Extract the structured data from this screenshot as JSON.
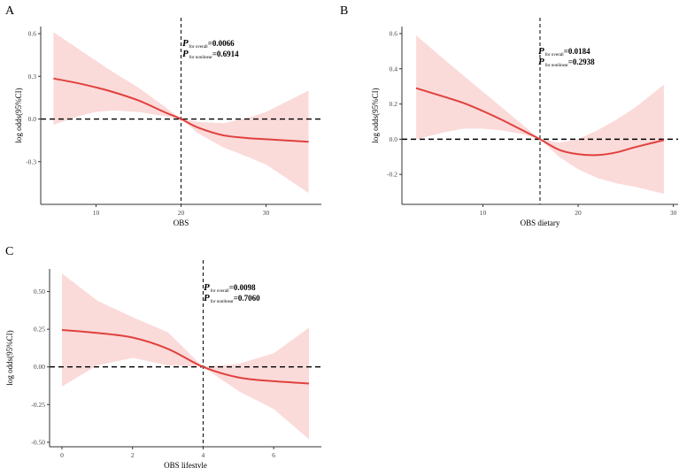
{
  "chart_data": [
    {
      "type": "line",
      "panel_label": "A",
      "xlabel": "OBS",
      "ylabel": "log odds(95%CI)",
      "xlim": [
        3.5,
        36.5
      ],
      "ylim": [
        -0.6,
        0.65
      ],
      "x_ticks": [
        10,
        20,
        30
      ],
      "x_tick_labels": [
        "10",
        "20",
        "30"
      ],
      "y_ticks": [
        -0.3,
        0,
        0.3,
        0.6
      ],
      "y_tick_labels": [
        "-0.3",
        "0.0",
        "0.3",
        "0.6"
      ],
      "reference_x": 20,
      "reference_y": 0,
      "annotation": {
        "line1": {
          "p": "P",
          "sub": "for overall",
          "value": "=0.0066"
        },
        "line2": {
          "p": "P",
          "sub": "for nonlinear",
          "value": "=0.6914"
        }
      },
      "series": [
        {
          "name": "estimate",
          "color": "#e0413d",
          "x": [
            5,
            8,
            10,
            12,
            15,
            18,
            20,
            22,
            25,
            28,
            30,
            35
          ],
          "values": [
            0.285,
            0.25,
            0.222,
            0.19,
            0.13,
            0.05,
            0.0,
            -0.06,
            -0.115,
            -0.135,
            -0.142,
            -0.16
          ]
        },
        {
          "name": "ci_upper",
          "color": "#fbdada",
          "x": [
            5,
            8,
            10,
            12,
            15,
            18,
            20,
            22,
            25,
            28,
            30,
            35
          ],
          "values": [
            0.61,
            0.49,
            0.41,
            0.33,
            0.22,
            0.09,
            0.0,
            -0.02,
            -0.03,
            0.01,
            0.05,
            0.2
          ]
        },
        {
          "name": "ci_lower",
          "color": "#fbdada",
          "x": [
            5,
            8,
            10,
            12,
            15,
            18,
            20,
            22,
            25,
            28,
            30,
            35
          ],
          "values": [
            -0.04,
            0.02,
            0.05,
            0.06,
            0.05,
            0.02,
            0.0,
            -0.1,
            -0.2,
            -0.27,
            -0.32,
            -0.52
          ]
        }
      ]
    },
    {
      "type": "line",
      "panel_label": "B",
      "xlabel": "OBS dietary",
      "ylabel": "log odds(95%CI)",
      "xlim": [
        1.5,
        30.5
      ],
      "ylim": [
        -0.37,
        0.64
      ],
      "x_ticks": [
        10,
        20,
        30
      ],
      "x_tick_labels": [
        "10",
        "20",
        "30"
      ],
      "y_ticks": [
        -0.2,
        0,
        0.2,
        0.4,
        0.6
      ],
      "y_tick_labels": [
        "-0.2",
        "0.0",
        "0.2",
        "0.4",
        "0.6"
      ],
      "reference_x": 16,
      "reference_y": 0,
      "annotation": {
        "line1": {
          "p": "P",
          "sub": "for overall",
          "value": "=0.0184"
        },
        "line2": {
          "p": "P",
          "sub": "for nonlinear",
          "value": "=0.2938"
        }
      },
      "series": [
        {
          "name": "estimate",
          "color": "#e0413d",
          "x": [
            3,
            6,
            8,
            10,
            12,
            14,
            16,
            18,
            20,
            22,
            24,
            26,
            29
          ],
          "values": [
            0.29,
            0.24,
            0.205,
            0.16,
            0.11,
            0.055,
            0.0,
            -0.06,
            -0.085,
            -0.09,
            -0.075,
            -0.045,
            -0.005
          ]
        },
        {
          "name": "ci_upper",
          "color": "#fbdada",
          "x": [
            3,
            6,
            8,
            10,
            12,
            14,
            16,
            18,
            20,
            22,
            24,
            26,
            29
          ],
          "values": [
            0.59,
            0.45,
            0.36,
            0.27,
            0.18,
            0.09,
            0.0,
            -0.02,
            0.0,
            0.05,
            0.11,
            0.18,
            0.31
          ]
        },
        {
          "name": "ci_lower",
          "color": "#fbdada",
          "x": [
            3,
            6,
            8,
            10,
            12,
            14,
            16,
            18,
            20,
            22,
            24,
            26,
            29
          ],
          "values": [
            0.0,
            0.04,
            0.06,
            0.06,
            0.05,
            0.03,
            0.0,
            -0.1,
            -0.17,
            -0.22,
            -0.25,
            -0.27,
            -0.31
          ]
        }
      ]
    },
    {
      "type": "line",
      "panel_label": "C",
      "xlabel": "OBS lifestyle",
      "ylabel": "log odds(95%CI)",
      "xlim": [
        -0.35,
        7.35
      ],
      "ylim": [
        -0.53,
        0.65
      ],
      "x_ticks": [
        0,
        2,
        4,
        6
      ],
      "x_tick_labels": [
        "0",
        "2",
        "4",
        "6"
      ],
      "y_ticks": [
        -0.5,
        -0.25,
        0,
        0.25,
        0.5
      ],
      "y_tick_labels": [
        "-0.50",
        "-0.25",
        "0.00",
        "0.25",
        "0.50"
      ],
      "reference_x": 4,
      "reference_y": 0,
      "annotation": {
        "line1": {
          "p": "P",
          "sub": "for overall",
          "value": "=0.0098"
        },
        "line2": {
          "p": "P",
          "sub": "for nonlinear",
          "value": "=0.7060"
        }
      },
      "series": [
        {
          "name": "estimate",
          "color": "#e0413d",
          "x": [
            0,
            1,
            2,
            3,
            4,
            5,
            6,
            7
          ],
          "values": [
            0.245,
            0.225,
            0.195,
            0.12,
            0.0,
            -0.07,
            -0.095,
            -0.11
          ]
        },
        {
          "name": "ci_upper",
          "color": "#fbdada",
          "x": [
            0,
            1,
            2,
            3,
            4,
            5,
            6,
            7
          ],
          "values": [
            0.62,
            0.44,
            0.33,
            0.23,
            0.0,
            0.02,
            0.09,
            0.26
          ]
        },
        {
          "name": "ci_lower",
          "color": "#fbdada",
          "x": [
            0,
            1,
            2,
            3,
            4,
            5,
            6,
            7
          ],
          "values": [
            -0.13,
            0.01,
            0.06,
            0.01,
            0.0,
            -0.16,
            -0.28,
            -0.48
          ]
        }
      ]
    }
  ]
}
